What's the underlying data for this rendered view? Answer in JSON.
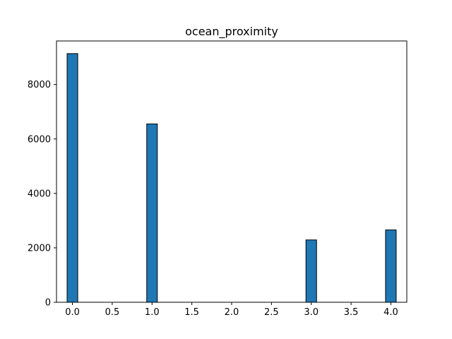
{
  "chart_data": {
    "type": "bar",
    "title": "ocean_proximity",
    "xlabel": "",
    "ylabel": "",
    "x": [
      0.0,
      1.0,
      3.0,
      4.0
    ],
    "values": [
      9136,
      6551,
      2290,
      2658
    ],
    "bar_width": 0.1333,
    "xlim": [
      -0.2,
      4.2
    ],
    "ylim": [
      0,
      9600
    ],
    "xticks": [
      0.0,
      0.5,
      1.0,
      1.5,
      2.0,
      2.5,
      3.0,
      3.5,
      4.0
    ],
    "xtick_labels": [
      "0.0",
      "0.5",
      "1.0",
      "1.5",
      "2.0",
      "2.5",
      "3.0",
      "3.5",
      "4.0"
    ],
    "yticks": [
      0,
      2000,
      4000,
      6000,
      8000
    ],
    "ytick_labels": [
      "0",
      "2000",
      "4000",
      "6000",
      "8000"
    ],
    "grid": false,
    "legend": "none",
    "bar_color": "#1f77b4",
    "edge_color": "#000000"
  }
}
